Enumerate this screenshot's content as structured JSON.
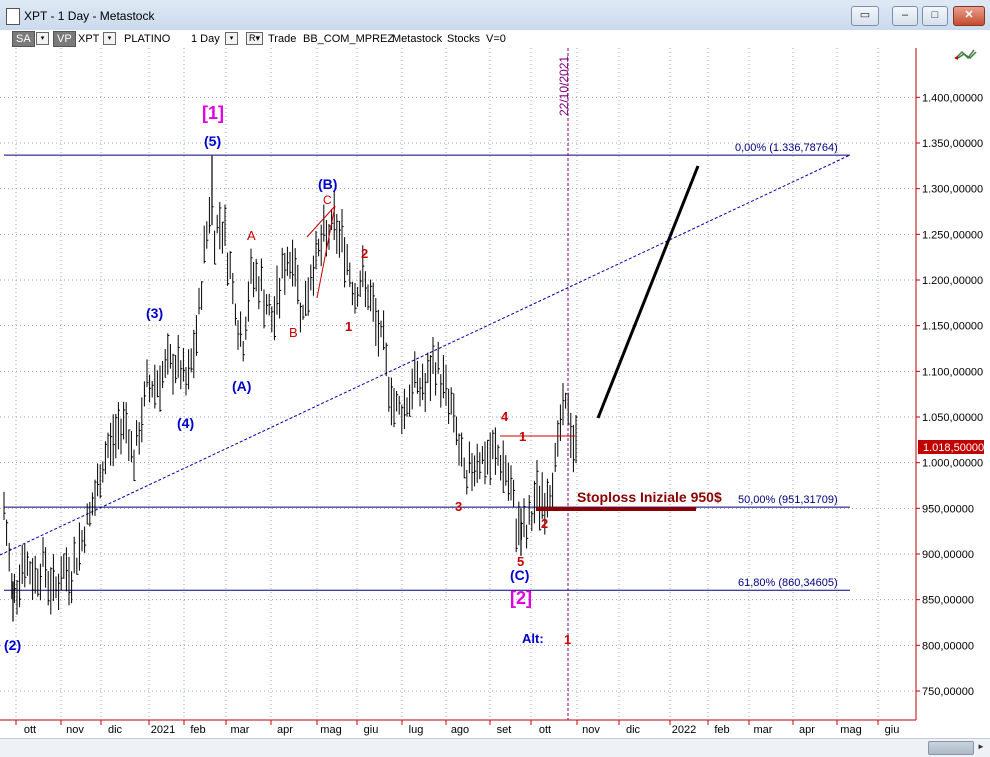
{
  "window": {
    "title": "XPT - 1 Day - Metastock",
    "buttons": {
      "restore": "▭",
      "minimize": "–",
      "maximize": "□",
      "close": "✕"
    }
  },
  "toolbar": {
    "sa": "SA",
    "sa_dd": "▾",
    "vp": "VP",
    "symbol": "XPT",
    "symbol_dd": "▾",
    "name": "PLATINO",
    "period": "1 Day",
    "period_dd": "▾",
    "r_btn": "R▾",
    "trade": "Trade",
    "account": "BB_COM_MPREZ",
    "source": "Metastock",
    "category": "Stocks",
    "volume": "V=0"
  },
  "chart_data": {
    "type": "candlestick",
    "symbol": "XPT",
    "ylim": [
      705000,
      1460000
    ],
    "y_ticks": [
      "1.400,00000",
      "1.350,00000",
      "1.300,00000",
      "1.250,00000",
      "1.200,00000",
      "1.150,00000",
      "1.100,00000",
      "1.050,00000",
      "1.000,00000",
      "950,00000",
      "900,00000",
      "850,00000",
      "800,00000",
      "750,00000"
    ],
    "y_tick_values": [
      1400000,
      1350000,
      1300000,
      1250000,
      1200000,
      1150000,
      1100000,
      1050000,
      1000000,
      950000,
      900000,
      850000,
      800000,
      750000
    ],
    "x_ticks": [
      "ott",
      "nov",
      "dic",
      "2021",
      "feb",
      "mar",
      "apr",
      "mag",
      "giu",
      "lug",
      "ago",
      "set",
      "ott",
      "nov",
      "dic",
      "2022",
      "feb",
      "mar",
      "apr",
      "mag",
      "giu"
    ],
    "last_price": "1.018,50000",
    "price_path": [
      {
        "date": "2020-09-25",
        "close": 948
      },
      {
        "date": "2020-10-01",
        "close": 855
      },
      {
        "date": "2020-10-08",
        "close": 895
      },
      {
        "date": "2020-10-15",
        "close": 875
      },
      {
        "date": "2020-10-22",
        "close": 890
      },
      {
        "date": "2020-10-29",
        "close": 860
      },
      {
        "date": "2020-11-05",
        "close": 880
      },
      {
        "date": "2020-11-12",
        "close": 885
      },
      {
        "date": "2020-11-20",
        "close": 930
      },
      {
        "date": "2020-11-27",
        "close": 960
      },
      {
        "date": "2020-12-04",
        "close": 1010
      },
      {
        "date": "2020-12-11",
        "close": 1030
      },
      {
        "date": "2020-12-18",
        "close": 1050
      },
      {
        "date": "2020-12-24",
        "close": 1000
      },
      {
        "date": "2021-01-01",
        "close": 1080
      },
      {
        "date": "2021-01-08",
        "close": 1090
      },
      {
        "date": "2021-01-15",
        "close": 1100
      },
      {
        "date": "2021-01-22",
        "close": 1110
      },
      {
        "date": "2021-01-29",
        "close": 1080
      },
      {
        "date": "2021-02-05",
        "close": 1140
      },
      {
        "date": "2021-02-10",
        "close": 1230
      },
      {
        "date": "2021-02-15",
        "close": 1300
      },
      {
        "date": "2021-02-17",
        "close": 1250
      },
      {
        "date": "2021-02-22",
        "close": 1270
      },
      {
        "date": "2021-02-26",
        "close": 1230
      },
      {
        "date": "2021-03-03",
        "close": 1180
      },
      {
        "date": "2021-03-08",
        "close": 1125
      },
      {
        "date": "2021-03-15",
        "close": 1210
      },
      {
        "date": "2021-03-22",
        "close": 1190
      },
      {
        "date": "2021-03-29",
        "close": 1150
      },
      {
        "date": "2021-04-05",
        "close": 1210
      },
      {
        "date": "2021-04-12",
        "close": 1230
      },
      {
        "date": "2021-04-19",
        "close": 1160
      },
      {
        "date": "2021-04-26",
        "close": 1220
      },
      {
        "date": "2021-05-03",
        "close": 1240
      },
      {
        "date": "2021-05-10",
        "close": 1260
      },
      {
        "date": "2021-05-17",
        "close": 1240
      },
      {
        "date": "2021-05-24",
        "close": 1190
      },
      {
        "date": "2021-05-31",
        "close": 1200
      },
      {
        "date": "2021-06-07",
        "close": 1160
      },
      {
        "date": "2021-06-14",
        "close": 1120
      },
      {
        "date": "2021-06-21",
        "close": 1060
      },
      {
        "date": "2021-06-28",
        "close": 1060
      },
      {
        "date": "2021-07-05",
        "close": 1090
      },
      {
        "date": "2021-07-12",
        "close": 1080
      },
      {
        "date": "2021-07-19",
        "close": 1110
      },
      {
        "date": "2021-07-26",
        "close": 1080
      },
      {
        "date": "2021-08-02",
        "close": 1040
      },
      {
        "date": "2021-08-09",
        "close": 970
      },
      {
        "date": "2021-08-16",
        "close": 1010
      },
      {
        "date": "2021-08-23",
        "close": 1000
      },
      {
        "date": "2021-08-30",
        "close": 1010
      },
      {
        "date": "2021-09-06",
        "close": 990
      },
      {
        "date": "2021-09-13",
        "close": 935
      },
      {
        "date": "2021-09-20",
        "close": 920
      },
      {
        "date": "2021-09-27",
        "close": 965
      },
      {
        "date": "2021-10-04",
        "close": 960
      },
      {
        "date": "2021-10-11",
        "close": 1010
      },
      {
        "date": "2021-10-15",
        "close": 1055
      },
      {
        "date": "2021-10-19",
        "close": 1060
      },
      {
        "date": "2021-10-22",
        "close": 1018.5
      }
    ],
    "fib_levels": [
      {
        "label": "0,00% (1.336,78764)",
        "value": 1336.78764
      },
      {
        "label": "50,00% (951,31709)",
        "value": 951.31709
      },
      {
        "label": "61,80% (860,34605)",
        "value": 860.34605
      }
    ],
    "stoploss_label": "Stoploss Iniziale 950$",
    "vertical_date": "22/10/2021",
    "wave_labels": {
      "w1": "[1]",
      "w2": "[2]",
      "w5": "(5)",
      "w3": "(3)",
      "w4": "(4)",
      "wA": "(A)",
      "wB": "(B)",
      "wC": "(C)",
      "w2b": "(2)",
      "a": "A",
      "b": "B",
      "c": "C",
      "one": "1",
      "two": "2",
      "three": "3",
      "four": "4",
      "one_b": "1",
      "five": "5",
      "two_b": "2",
      "alt": "Alt:",
      "alt_one": "1"
    }
  },
  "colors": {
    "wave_blue": "#0000cc",
    "wave_red": "#cc0000",
    "wave_magenta": "#e000e0",
    "axis_red": "#c00000",
    "stoploss": "#8b0000",
    "fib_line": "#000080",
    "vline": "#800080"
  }
}
